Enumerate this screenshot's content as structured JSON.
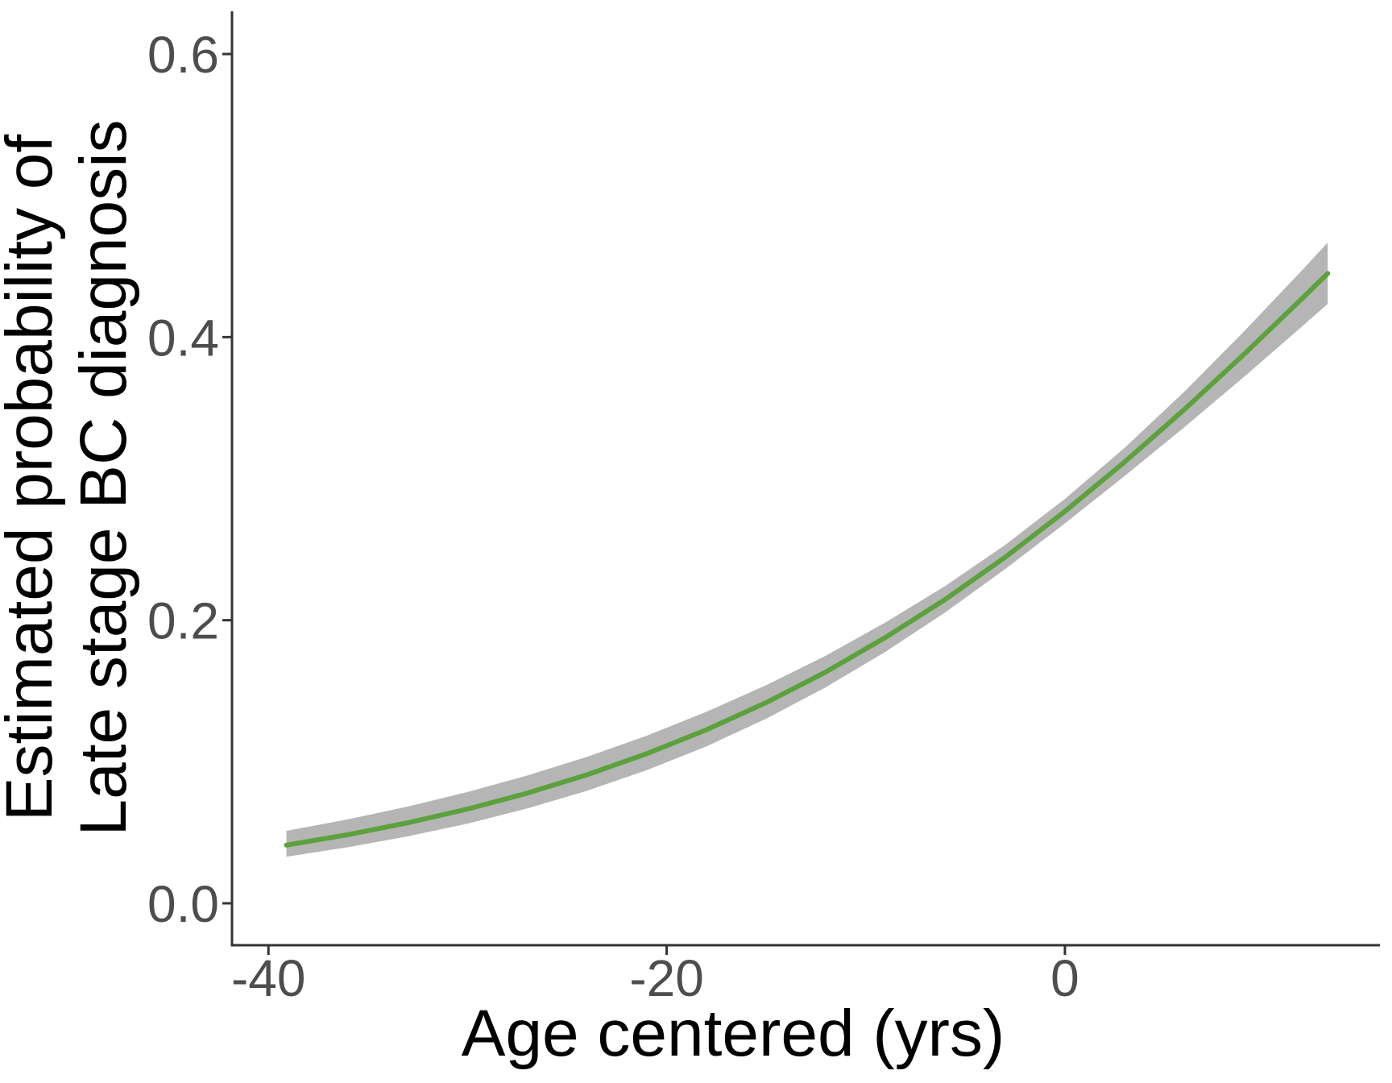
{
  "figure": {
    "background": "#ffffff",
    "x_axis_title": "Age centered (yrs)",
    "y_axis_title_line1": "Estimated probability of",
    "y_axis_title_line2": "Late stage BC diagnosis"
  },
  "chart_data": {
    "type": "line",
    "title": "",
    "xlabel": "Age centered (yrs)",
    "ylabel": "Estimated probability of Late stage BC diagnosis",
    "grid": "off",
    "legend": "none",
    "xlim": [
      -41.83,
      15.82
    ],
    "ylim": [
      -0.0296,
      0.6302
    ],
    "x_ticks": [
      {
        "value": -40,
        "label": "-40"
      },
      {
        "value": -20,
        "label": "-20"
      },
      {
        "value": 0,
        "label": "0"
      }
    ],
    "y_ticks": [
      {
        "value": 0.0,
        "label": "0.0"
      },
      {
        "value": 0.2,
        "label": "0.2"
      },
      {
        "value": 0.4,
        "label": "0.4"
      },
      {
        "value": 0.6,
        "label": "0.6"
      }
    ],
    "colors": {
      "line": "#5ba13c",
      "ribbon": "#b5b5b5",
      "axis": "#333333",
      "tick_text": "#4d4d4d",
      "title_text": "#000000"
    },
    "series": [
      {
        "name": "Estimated probability of late stage BC diagnosis",
        "style": "line-with-ci-ribbon",
        "x": [
          -39.1,
          -36,
          -33,
          -30,
          -27,
          -24,
          -21,
          -18,
          -15,
          -12,
          -9,
          -6,
          -3,
          0,
          3,
          6,
          9,
          12,
          13.2
        ],
        "y": [
          0.0411,
          0.0485,
          0.0569,
          0.0666,
          0.0778,
          0.0908,
          0.1057,
          0.1226,
          0.1418,
          0.1635,
          0.1879,
          0.2148,
          0.2445,
          0.2769,
          0.3118,
          0.3489,
          0.3879,
          0.4285,
          0.445
        ],
        "ci_lower": [
          0.0329,
          0.0396,
          0.0473,
          0.0563,
          0.067,
          0.0795,
          0.0941,
          0.1109,
          0.1304,
          0.1527,
          0.1778,
          0.2056,
          0.2361,
          0.2684,
          0.3019,
          0.3364,
          0.372,
          0.4087,
          0.4235
        ],
        "ci_upper": [
          0.0512,
          0.0593,
          0.0684,
          0.0786,
          0.0903,
          0.1035,
          0.1184,
          0.1353,
          0.1541,
          0.175,
          0.1985,
          0.2243,
          0.2532,
          0.2857,
          0.3218,
          0.3615,
          0.4041,
          0.4486,
          0.4668
        ]
      }
    ]
  }
}
